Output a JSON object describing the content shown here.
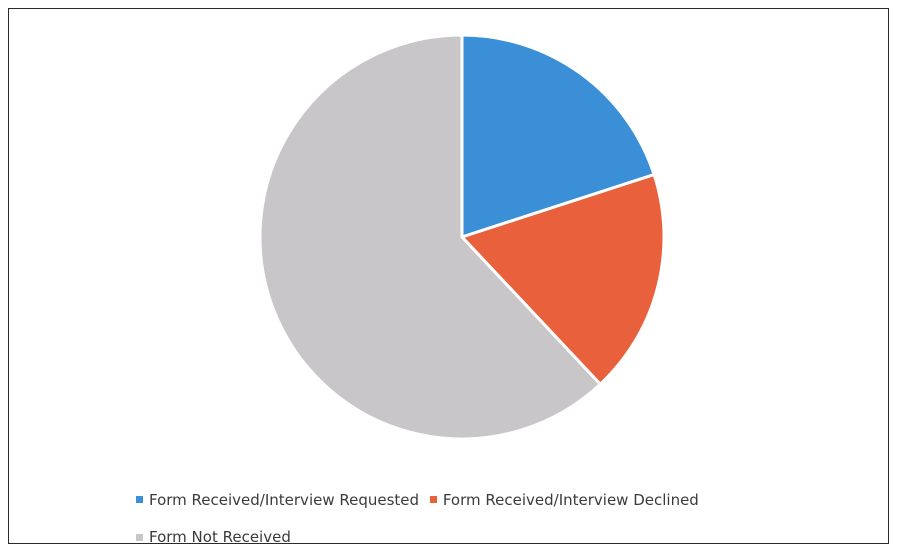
{
  "chart_data": {
    "type": "pie",
    "title": "",
    "slices": [
      {
        "label": "Form Received/Interview Requested",
        "value": 20,
        "color": "#3a8fd6"
      },
      {
        "label": "Form Received/Interview Declined",
        "value": 18,
        "color": "#e8603c"
      },
      {
        "label": "Form Not Received",
        "value": 62,
        "color": "#c9c6c9"
      }
    ],
    "legend_position": "bottom"
  }
}
